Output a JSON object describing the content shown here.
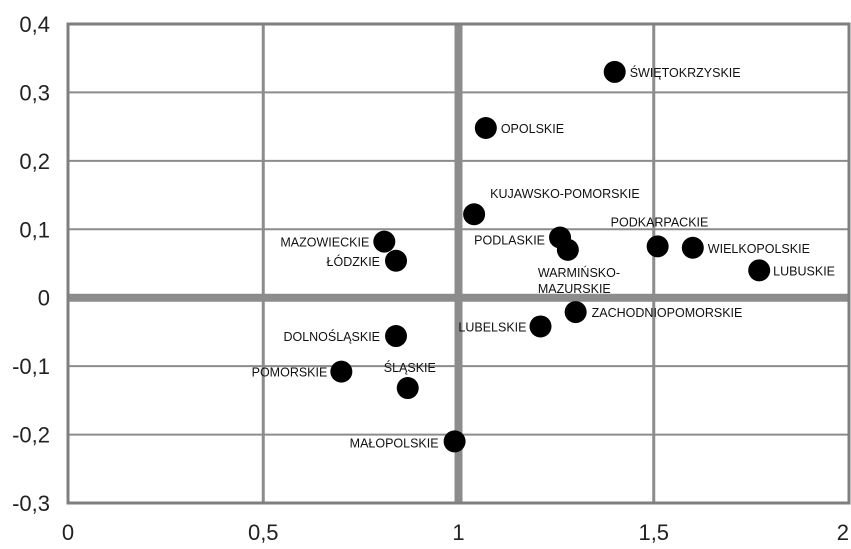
{
  "chart_data": {
    "type": "scatter",
    "title": "",
    "xlabel": "",
    "ylabel": "",
    "xlim": [
      0,
      2
    ],
    "ylim": [
      -0.3,
      0.4
    ],
    "x_ticks": [
      0,
      0.5,
      1,
      1.5,
      2
    ],
    "y_ticks": [
      -0.3,
      -0.2,
      -0.1,
      0,
      0.1,
      0.2,
      0.3,
      0.4
    ],
    "x_tick_labels": [
      "0",
      "0,5",
      "1",
      "1,5",
      "2"
    ],
    "y_tick_labels": [
      "-0,3",
      "-0,2",
      "-0,1",
      "0",
      "0,1",
      "0,2",
      "0,3",
      "0,4"
    ],
    "grid": true,
    "quadrant_lines": {
      "x": 1,
      "y": 0
    },
    "colors": {
      "point": "#000000",
      "grid": "#8c8c8c",
      "axis": "#7f7f7f",
      "quadrant": "#8c8c8c"
    },
    "points": [
      {
        "label": "ŚWIĘTOKRZYSKIE",
        "x": 1.4,
        "y": 0.33
      },
      {
        "label": "OPOLSKIE",
        "x": 1.07,
        "y": 0.248
      },
      {
        "label": "KUJAWSKO-POMORSKIE",
        "x": 1.04,
        "y": 0.122
      },
      {
        "label": "PODKARPACKIE",
        "x": 1.51,
        "y": 0.075
      },
      {
        "label": "WIELKOPOLSKIE",
        "x": 1.6,
        "y": 0.073
      },
      {
        "label": "PODLASKIE",
        "x": 1.26,
        "y": 0.088
      },
      {
        "label": "WARMIŃSKO-MAZURSKIE",
        "x": 1.28,
        "y": 0.07
      },
      {
        "label": "LUBUSKIE",
        "x": 1.77,
        "y": 0.04
      },
      {
        "label": "MAZOWIECKIE",
        "x": 0.81,
        "y": 0.082
      },
      {
        "label": "ŁÓDZKIE",
        "x": 0.84,
        "y": 0.054
      },
      {
        "label": "ZACHODNIOPOMORSKIE",
        "x": 1.3,
        "y": -0.021
      },
      {
        "label": "LUBELSKIE",
        "x": 1.21,
        "y": -0.042
      },
      {
        "label": "DOLNOŚLĄSKIE",
        "x": 0.84,
        "y": -0.056
      },
      {
        "label": "POMORSKIE",
        "x": 0.7,
        "y": -0.108
      },
      {
        "label": "ŚLĄSKIE",
        "x": 0.87,
        "y": -0.132
      },
      {
        "label": "MAŁOPOLSKIE",
        "x": 0.99,
        "y": -0.21
      }
    ]
  }
}
